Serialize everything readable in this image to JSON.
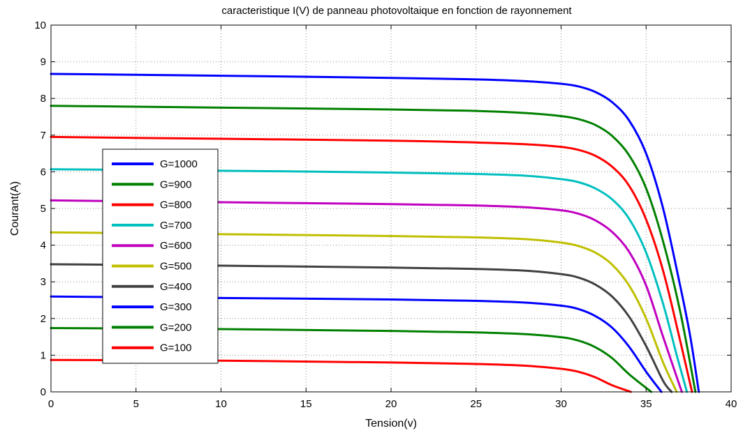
{
  "chart_data": {
    "type": "line",
    "title": "caracteristique I(V) de panneau photovoltaique en fonction de rayonnement",
    "xlabel": "Tension(v)",
    "ylabel": "Courant(A)",
    "xlim": [
      0,
      40
    ],
    "ylim": [
      0,
      10
    ],
    "xticks": [
      "0",
      "5",
      "10",
      "15",
      "20",
      "25",
      "30",
      "35",
      "40"
    ],
    "yticks": [
      "0",
      "1",
      "2",
      "3",
      "4",
      "5",
      "6",
      "7",
      "8",
      "9",
      "10"
    ],
    "grid": true,
    "legend_position": "left",
    "series": [
      {
        "name": "G=1000",
        "color": "#0000ff",
        "points": [
          [
            0,
            8.67
          ],
          [
            10,
            8.62
          ],
          [
            20,
            8.56
          ],
          [
            25,
            8.52
          ],
          [
            28,
            8.47
          ],
          [
            30,
            8.4
          ],
          [
            31,
            8.33
          ],
          [
            32,
            8.18
          ],
          [
            33,
            7.9
          ],
          [
            34,
            7.4
          ],
          [
            35,
            6.5
          ],
          [
            36,
            5.0
          ],
          [
            37,
            2.9
          ],
          [
            37.6,
            1.5
          ],
          [
            38.1,
            0
          ]
        ]
      },
      {
        "name": "G=900",
        "color": "#008000",
        "points": [
          [
            0,
            7.8
          ],
          [
            10,
            7.75
          ],
          [
            20,
            7.7
          ],
          [
            25,
            7.66
          ],
          [
            28,
            7.6
          ],
          [
            30,
            7.52
          ],
          [
            31,
            7.44
          ],
          [
            32,
            7.28
          ],
          [
            33,
            6.98
          ],
          [
            34,
            6.45
          ],
          [
            35,
            5.55
          ],
          [
            36,
            4.1
          ],
          [
            37,
            2.2
          ],
          [
            37.9,
            0
          ]
        ]
      },
      {
        "name": "G=800",
        "color": "#ff0000",
        "points": [
          [
            0,
            6.95
          ],
          [
            10,
            6.9
          ],
          [
            20,
            6.85
          ],
          [
            25,
            6.8
          ],
          [
            28,
            6.75
          ],
          [
            30,
            6.68
          ],
          [
            31,
            6.6
          ],
          [
            32,
            6.44
          ],
          [
            33,
            6.14
          ],
          [
            34,
            5.62
          ],
          [
            35,
            4.7
          ],
          [
            36,
            3.3
          ],
          [
            37,
            1.4
          ],
          [
            37.7,
            0
          ]
        ]
      },
      {
        "name": "G=700",
        "color": "#00bfbf",
        "points": [
          [
            0,
            6.07
          ],
          [
            10,
            6.03
          ],
          [
            20,
            5.98
          ],
          [
            25,
            5.94
          ],
          [
            28,
            5.89
          ],
          [
            30,
            5.8
          ],
          [
            31,
            5.72
          ],
          [
            32,
            5.55
          ],
          [
            33,
            5.25
          ],
          [
            34,
            4.72
          ],
          [
            35,
            3.8
          ],
          [
            36,
            2.4
          ],
          [
            36.8,
            1.0
          ],
          [
            37.4,
            0
          ]
        ]
      },
      {
        "name": "G=600",
        "color": "#bf00bf",
        "points": [
          [
            0,
            5.22
          ],
          [
            10,
            5.17
          ],
          [
            20,
            5.12
          ],
          [
            25,
            5.08
          ],
          [
            28,
            5.03
          ],
          [
            30,
            4.95
          ],
          [
            31,
            4.86
          ],
          [
            32,
            4.68
          ],
          [
            33,
            4.36
          ],
          [
            34,
            3.82
          ],
          [
            35,
            2.9
          ],
          [
            36,
            1.5
          ],
          [
            37.1,
            0
          ]
        ]
      },
      {
        "name": "G=500",
        "color": "#bfbf00",
        "points": [
          [
            0,
            4.35
          ],
          [
            10,
            4.3
          ],
          [
            20,
            4.25
          ],
          [
            25,
            4.21
          ],
          [
            28,
            4.16
          ],
          [
            30,
            4.07
          ],
          [
            31,
            3.98
          ],
          [
            32,
            3.8
          ],
          [
            33,
            3.47
          ],
          [
            34,
            2.9
          ],
          [
            35,
            2.0
          ],
          [
            36,
            0.8
          ],
          [
            36.8,
            0
          ]
        ]
      },
      {
        "name": "G=400",
        "color": "#404040",
        "points": [
          [
            0,
            3.48
          ],
          [
            10,
            3.44
          ],
          [
            20,
            3.39
          ],
          [
            25,
            3.35
          ],
          [
            28,
            3.3
          ],
          [
            30,
            3.21
          ],
          [
            31,
            3.12
          ],
          [
            32,
            2.93
          ],
          [
            33,
            2.6
          ],
          [
            34,
            2.05
          ],
          [
            35,
            1.25
          ],
          [
            36,
            0.3
          ],
          [
            36.5,
            0
          ]
        ]
      },
      {
        "name": "G=300",
        "color": "#0000ff",
        "points": [
          [
            0,
            2.6
          ],
          [
            10,
            2.56
          ],
          [
            20,
            2.52
          ],
          [
            25,
            2.48
          ],
          [
            28,
            2.43
          ],
          [
            30,
            2.35
          ],
          [
            31,
            2.26
          ],
          [
            32,
            2.07
          ],
          [
            33,
            1.75
          ],
          [
            34,
            1.23
          ],
          [
            35,
            0.55
          ],
          [
            35.9,
            0
          ]
        ]
      },
      {
        "name": "G=200",
        "color": "#008000",
        "points": [
          [
            0,
            1.74
          ],
          [
            10,
            1.71
          ],
          [
            20,
            1.66
          ],
          [
            25,
            1.62
          ],
          [
            28,
            1.57
          ],
          [
            30,
            1.49
          ],
          [
            31,
            1.4
          ],
          [
            32,
            1.22
          ],
          [
            33,
            0.92
          ],
          [
            34,
            0.48
          ],
          [
            35.3,
            0
          ]
        ]
      },
      {
        "name": "G=100",
        "color": "#ff0000",
        "points": [
          [
            0,
            0.87
          ],
          [
            10,
            0.85
          ],
          [
            20,
            0.8
          ],
          [
            25,
            0.76
          ],
          [
            28,
            0.71
          ],
          [
            30,
            0.63
          ],
          [
            31,
            0.55
          ],
          [
            32,
            0.4
          ],
          [
            33,
            0.18
          ],
          [
            34.1,
            0
          ]
        ]
      }
    ]
  }
}
